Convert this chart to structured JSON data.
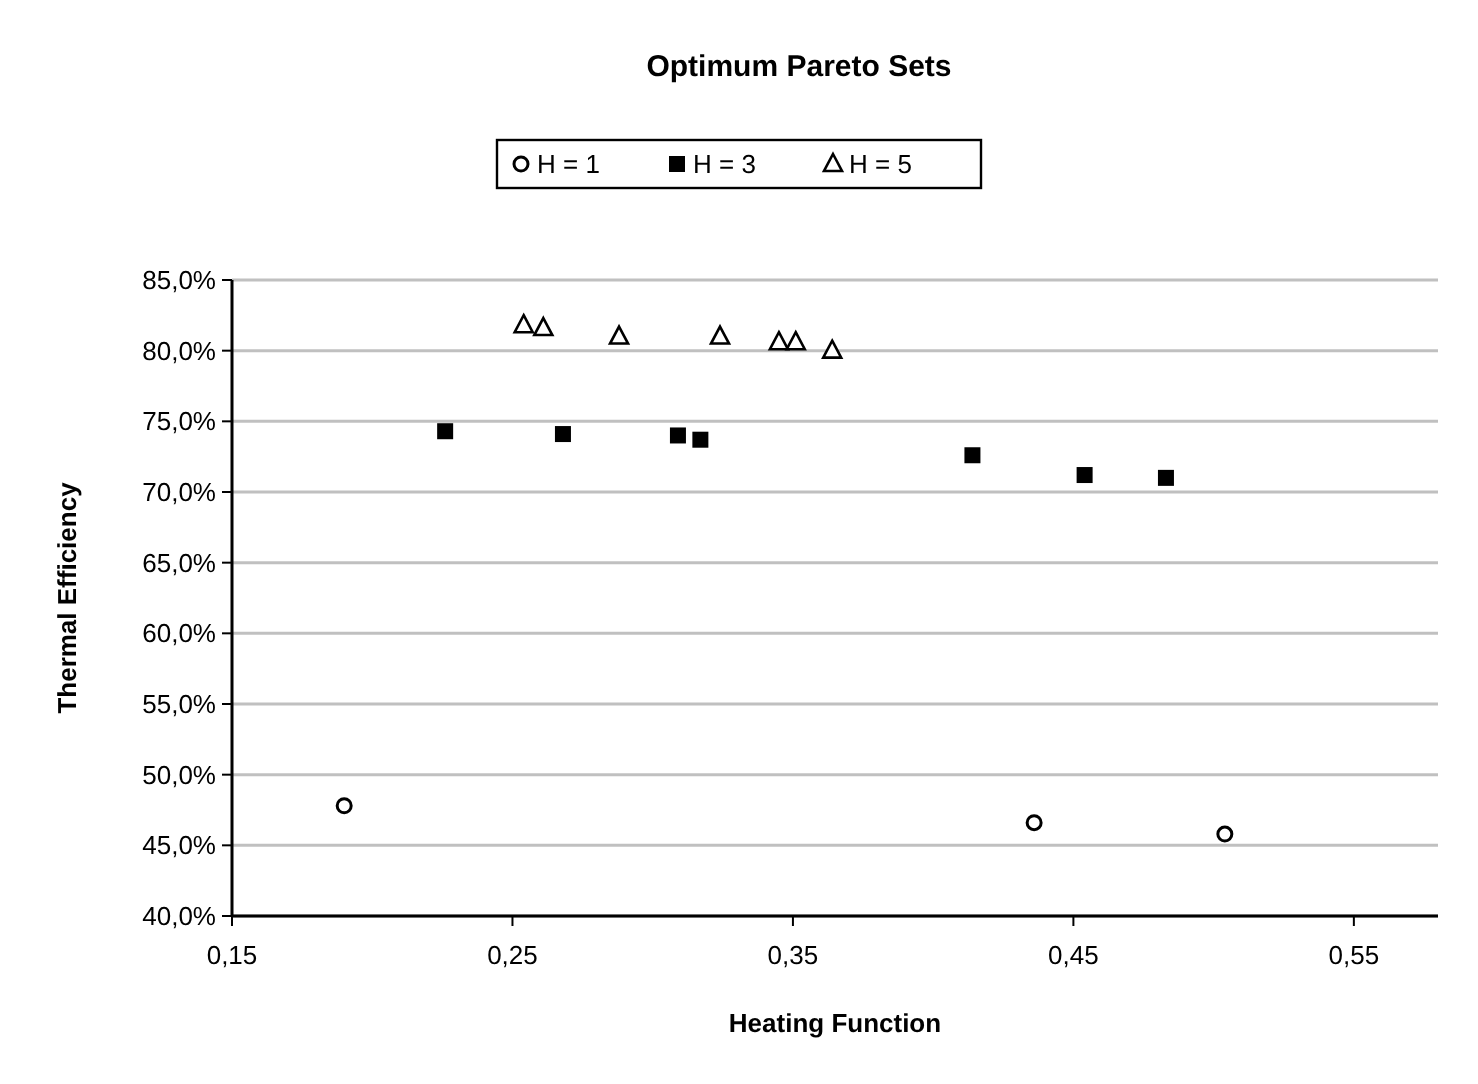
{
  "chart_data": {
    "type": "scatter",
    "title": "Optimum Pareto Sets",
    "xlabel": "Heating Function",
    "ylabel": "Thermal Efficiency",
    "xlim": [
      0.15,
      0.58
    ],
    "xticks": [
      {
        "value": 0.15,
        "label": "0,15"
      },
      {
        "value": 0.25,
        "label": "0,25"
      },
      {
        "value": 0.35,
        "label": "0,35"
      },
      {
        "value": 0.45,
        "label": "0,45"
      },
      {
        "value": 0.55,
        "label": "0,55"
      }
    ],
    "ylim": [
      40,
      85
    ],
    "yticks": [
      {
        "value": 40,
        "label": "40,0%"
      },
      {
        "value": 45,
        "label": "45,0%"
      },
      {
        "value": 50,
        "label": "50,0%"
      },
      {
        "value": 55,
        "label": "55,0%"
      },
      {
        "value": 60,
        "label": "60,0%"
      },
      {
        "value": 65,
        "label": "65,0%"
      },
      {
        "value": 70,
        "label": "70,0%"
      },
      {
        "value": 75,
        "label": "75,0%"
      },
      {
        "value": 80,
        "label": "80,0%"
      },
      {
        "value": 85,
        "label": "85,0%"
      }
    ],
    "grid": "y",
    "legend": "top",
    "series": [
      {
        "name": "H = 1",
        "color": "#000000",
        "marker": "circle",
        "x": [
          0.19,
          0.436,
          0.504
        ],
        "values": [
          47.8,
          46.6,
          45.8
        ]
      },
      {
        "name": "H = 3",
        "color": "#000000",
        "marker": "square",
        "x": [
          0.226,
          0.268,
          0.309,
          0.317,
          0.414,
          0.454,
          0.483
        ],
        "values": [
          74.3,
          74.1,
          74.0,
          73.7,
          72.6,
          71.2,
          71.0
        ]
      },
      {
        "name": "H = 5",
        "color": "#000000",
        "marker": "triangle",
        "x": [
          0.254,
          0.261,
          0.288,
          0.324,
          0.345,
          0.351,
          0.364
        ],
        "values": [
          81.8,
          81.6,
          81.0,
          81.0,
          80.6,
          80.6,
          80.0
        ]
      }
    ]
  }
}
